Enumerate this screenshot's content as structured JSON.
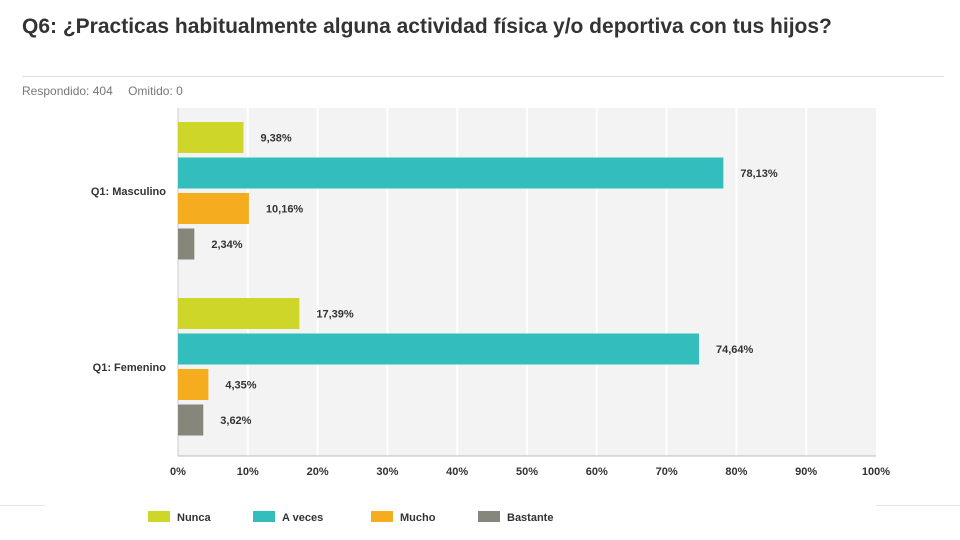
{
  "question": {
    "title": "Q6: ¿Practicas habitualmente alguna actividad física y/o deportiva con tus hijos?",
    "answered": "Respondido: 404",
    "skipped": "Omitido: 0"
  },
  "colors": {
    "Nunca": "#cdd629",
    "A veces": "#33bdbd",
    "Mucho": "#f5ad1f",
    "Bastante": "#87867a",
    "plot_background": "#f3f3f3",
    "grid": "#ffffff"
  },
  "chart_data": {
    "type": "bar",
    "orientation": "horizontal",
    "categories": [
      "Q1: Masculino",
      "Q1: Femenino"
    ],
    "series": [
      {
        "name": "Nunca",
        "values": [
          9.38,
          17.39
        ],
        "labels": [
          "9,38%",
          "17,39%"
        ]
      },
      {
        "name": "A veces",
        "values": [
          78.13,
          74.64
        ],
        "labels": [
          "78,13%",
          "74,64%"
        ]
      },
      {
        "name": "Mucho",
        "values": [
          10.16,
          4.35
        ],
        "labels": [
          "10,16%",
          "4,35%"
        ]
      },
      {
        "name": "Bastante",
        "values": [
          2.34,
          3.62
        ],
        "labels": [
          "2,34%",
          "3,62%"
        ]
      }
    ],
    "xlim": [
      0,
      100
    ],
    "x_ticks": [
      "0%",
      "10%",
      "20%",
      "30%",
      "40%",
      "50%",
      "60%",
      "70%",
      "80%",
      "90%",
      "100%"
    ],
    "grid": true,
    "legend_position": "bottom"
  }
}
